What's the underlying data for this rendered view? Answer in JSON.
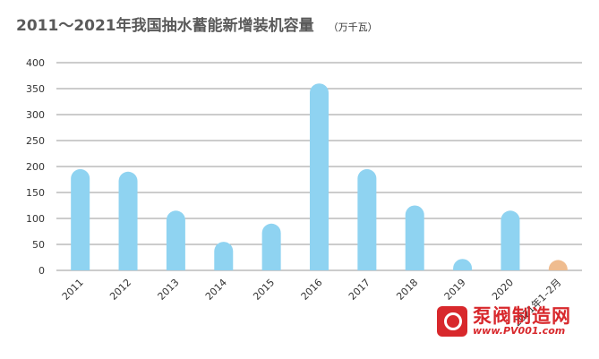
{
  "header": {
    "title": "2011～2021年我国抽水蓄能新增装机容量",
    "unit": "（万千瓦）"
  },
  "watermark": {
    "name": "泵阀制造网",
    "url": "www.PV001.com"
  },
  "colors": {
    "bar": "#8fd3f1",
    "highlight": "#efbc8f",
    "grid": "#9a9a9a",
    "watermark": "#d8282c"
  },
  "chart_data": {
    "type": "bar",
    "categories": [
      "2011",
      "2012",
      "2013",
      "2014",
      "2015",
      "2016",
      "2017",
      "2018",
      "2019",
      "2020",
      "2021年1–2月"
    ],
    "values": [
      195,
      190,
      115,
      55,
      90,
      360,
      195,
      125,
      22,
      115,
      20
    ],
    "highlight_index": 10,
    "ylim": [
      0,
      400
    ],
    "yticks": [
      0,
      50,
      100,
      150,
      200,
      250,
      300,
      350,
      400
    ],
    "grid": true,
    "legend": "none"
  }
}
